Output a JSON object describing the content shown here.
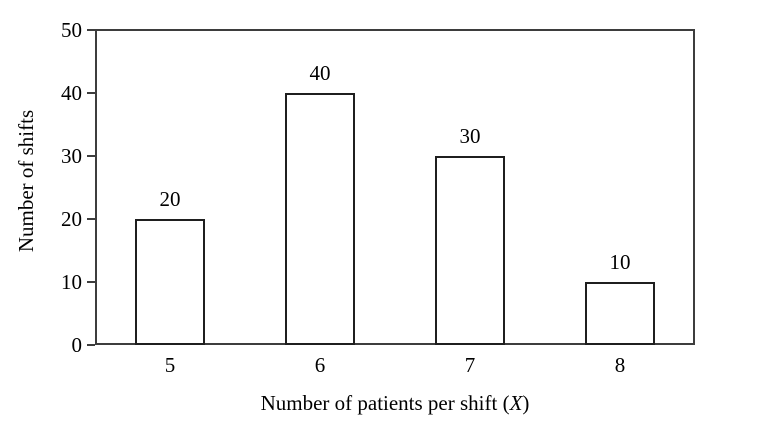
{
  "chart_data": {
    "type": "bar",
    "categories": [
      "5",
      "6",
      "7",
      "8"
    ],
    "values": [
      20,
      40,
      30,
      10
    ],
    "data_labels": [
      "20",
      "40",
      "30",
      "10"
    ],
    "title": "",
    "xlabel": "Number of patients per shift (X)",
    "xlabel_prefix": "Number of patients per shift (",
    "xlabel_var": "X",
    "xlabel_suffix": ")",
    "ylabel": "Number of shifts",
    "ylim": [
      0,
      50
    ],
    "yticks": [
      0,
      10,
      20,
      30,
      40,
      50
    ],
    "grid": "horizontal",
    "legend": "none",
    "colors": {
      "bar_fill": "#ffffff",
      "bar_outline": "#1f1f1f",
      "axis_border": "#3d3d3d",
      "gridline": "#d9d9d9",
      "text": "#000000",
      "background": "#ffffff"
    }
  }
}
